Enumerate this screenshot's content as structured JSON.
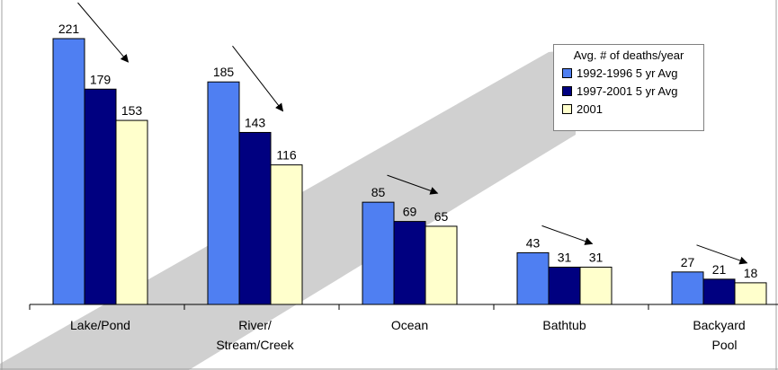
{
  "chart_data": {
    "type": "bar",
    "categories": [
      "Lake/Pond",
      "River/\nStream/Creek",
      "Ocean",
      "Bathtub",
      "Backyard\nPool"
    ],
    "series": [
      {
        "name": "1992-1996 5 yr Avg",
        "values": [
          221,
          185,
          85,
          43,
          27
        ],
        "color": "#4f7ff2"
      },
      {
        "name": "1997-2001 5 yr Avg",
        "values": [
          179,
          143,
          69,
          31,
          21
        ],
        "color": "#000080"
      },
      {
        "name": "2001",
        "values": [
          153,
          116,
          65,
          31,
          18
        ],
        "color": "#ffffcc"
      }
    ],
    "legend_title": "Avg. # of deaths/year",
    "legend_position": "top-right",
    "title": "",
    "xlabel": "",
    "ylabel": "",
    "ylim": [
      0,
      240
    ],
    "grid": false,
    "annotations": "decreasing-trend arrows above each category; grey diagonal band in background"
  }
}
